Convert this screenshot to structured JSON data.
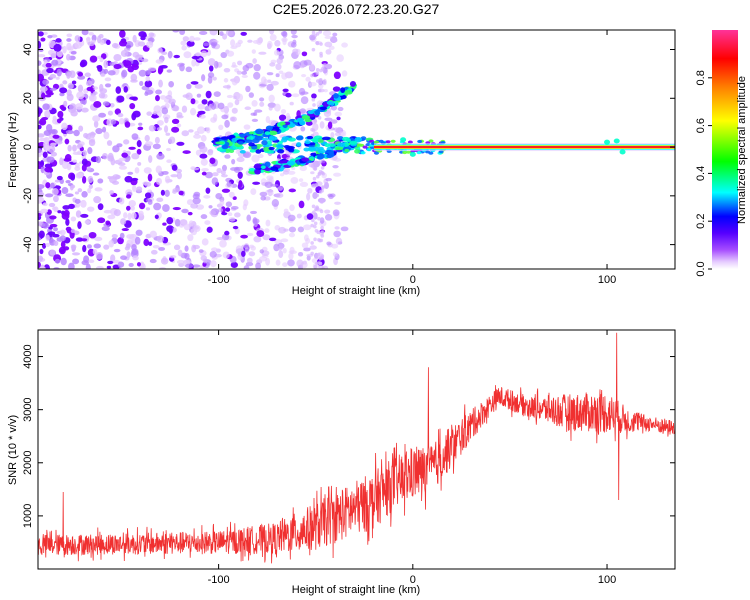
{
  "title": "C2E5.2026.072.23.20.G27",
  "chart_data": [
    {
      "type": "heatmap",
      "xlabel": "Height of straight line (km)",
      "ylabel": "Frequency (Hz)",
      "xlim": [
        -193,
        135
      ],
      "ylim": [
        -50,
        48
      ],
      "x_ticks": [
        -100,
        0,
        100
      ],
      "y_ticks": [
        -40,
        -20,
        0,
        20,
        40
      ],
      "colorbar": {
        "label": "Normalized spectral amplitude",
        "range": [
          0,
          1
        ],
        "ticks": [
          0.0,
          0.2,
          0.4,
          0.6,
          0.8
        ],
        "tick_labels": [
          "0.0",
          "0.2",
          "0.4",
          "0.6",
          "0.8"
        ]
      },
      "features": {
        "noise_region_x": [
          -193,
          -45
        ],
        "carrier_line": {
          "x_start": -20,
          "x_end": 135,
          "frequency": 0,
          "amplitude": 0.95
        },
        "upper_branch": {
          "x": [
            -102,
            -80,
            -60,
            -45,
            -30
          ],
          "frequency": [
            2,
            5,
            10,
            16,
            26
          ]
        },
        "lower_branch": {
          "x": [
            -85,
            -65,
            -45,
            -30
          ],
          "frequency": [
            -10,
            -7,
            -3,
            2
          ]
        },
        "central_band": {
          "x": [
            -100,
            -20
          ],
          "frequency": [
            1,
            2
          ],
          "amplitude": 0.5
        }
      },
      "colors": [
        "#ffffff",
        "#cc99ff",
        "#8000ff",
        "#0000ff",
        "#00ffff",
        "#00ff00",
        "#ffff00",
        "#ff8000",
        "#ff0000",
        "#ff0080"
      ]
    },
    {
      "type": "line",
      "xlabel": "Height of straight line (km)",
      "ylabel": "SNR (10 * v/v)",
      "xlim": [
        -193,
        135
      ],
      "ylim": [
        0,
        4500
      ],
      "x_ticks": [
        -100,
        0,
        100
      ],
      "y_ticks": [
        1000,
        2000,
        3000,
        4000
      ],
      "series_color": "#f03030",
      "envelope": {
        "x": [
          -193,
          -150,
          -100,
          -70,
          -50,
          -35,
          -20,
          -10,
          0,
          10,
          20,
          30,
          40,
          45,
          60,
          80,
          100,
          110,
          120,
          135
        ],
        "mean": [
          450,
          470,
          500,
          580,
          800,
          1050,
          1300,
          1600,
          1800,
          1900,
          2300,
          2700,
          3100,
          3250,
          3050,
          2950,
          2950,
          2800,
          2750,
          2650
        ],
        "spread": [
          200,
          200,
          220,
          300,
          450,
          500,
          550,
          500,
          500,
          450,
          400,
          300,
          200,
          200,
          200,
          350,
          400,
          250,
          150,
          150
        ]
      },
      "spikes": [
        {
          "x": -180,
          "y": 1450
        },
        {
          "x": 8,
          "y": 3800
        },
        {
          "x": 105,
          "y": 4450
        },
        {
          "x": 106,
          "y": 1300
        }
      ]
    }
  ]
}
